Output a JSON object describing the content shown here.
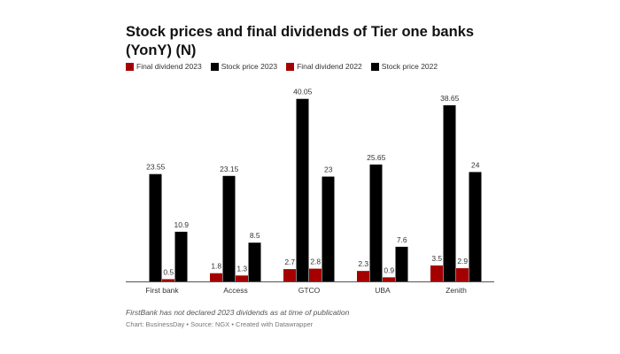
{
  "chart_data": {
    "type": "bar",
    "title": "Stock prices and final dividends of Tier one banks (YonY) (N)",
    "categories": [
      "First bank",
      "Access",
      "GTCO",
      "UBA",
      "Zenith"
    ],
    "series": [
      {
        "name": "Final dividend 2023",
        "color": "#a50000",
        "values": [
          null,
          1.8,
          2.7,
          2.3,
          3.5
        ],
        "labels": [
          "",
          "1.8",
          "2.7",
          "2.3",
          "3.5"
        ]
      },
      {
        "name": "Stock price 2023",
        "color": "#000000",
        "values": [
          23.55,
          23.15,
          40.05,
          25.65,
          38.65
        ],
        "labels": [
          "23.55",
          "23.15",
          "40.05",
          "25.65",
          "38.65"
        ]
      },
      {
        "name": "Final dividend 2022",
        "color": "#a50000",
        "values": [
          0.5,
          1.3,
          2.8,
          0.9,
          2.9
        ],
        "labels": [
          "0.5",
          "1.3",
          "2.8",
          "0.9",
          "2.9"
        ]
      },
      {
        "name": "Stock price 2022",
        "color": "#000000",
        "values": [
          10.9,
          8.5,
          23,
          7.6,
          24
        ],
        "labels": [
          "10.9",
          "8.5",
          "23",
          "7.6",
          "24"
        ]
      }
    ],
    "ylim": [
      0,
      41
    ],
    "grid": false,
    "legend_placement": "top-left"
  },
  "note": "FirstBank has not declared 2023 dividends as at time of publication",
  "credit": "Chart: BusinessDay • Source: NGX • Created with Datawrapper"
}
